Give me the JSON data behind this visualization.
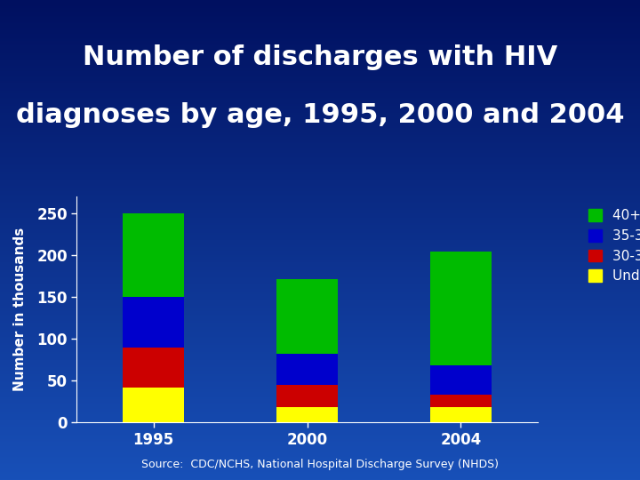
{
  "title_line1": "Number of discharges with HIV",
  "title_line2": "diagnoses by age, 1995, 2000 and 2004",
  "source": "Source:  CDC/NCHS, National Hospital Discharge Survey (NHDS)",
  "years": [
    "1995",
    "2000",
    "2004"
  ],
  "under30": [
    42,
    18,
    18
  ],
  "age30_34": [
    48,
    27,
    15
  ],
  "age35_39": [
    60,
    37,
    35
  ],
  "age40plus": [
    100,
    90,
    137
  ],
  "colors": {
    "under30": "#FFFF00",
    "age30_34": "#CC0000",
    "age35_39": "#0000CC",
    "age40plus": "#00BB00"
  },
  "ylabel": "Number in thousands",
  "ylim": [
    0,
    270
  ],
  "yticks": [
    0,
    50,
    100,
    150,
    200,
    250
  ],
  "bg_top": "#001060",
  "bg_mid": "#1040c0",
  "bg_bottom": "#1850b8",
  "text_color": "#ffffff",
  "title_fontsize": 22,
  "label_fontsize": 11,
  "tick_fontsize": 12,
  "legend_fontsize": 11,
  "source_fontsize": 9,
  "bar_width": 0.4
}
